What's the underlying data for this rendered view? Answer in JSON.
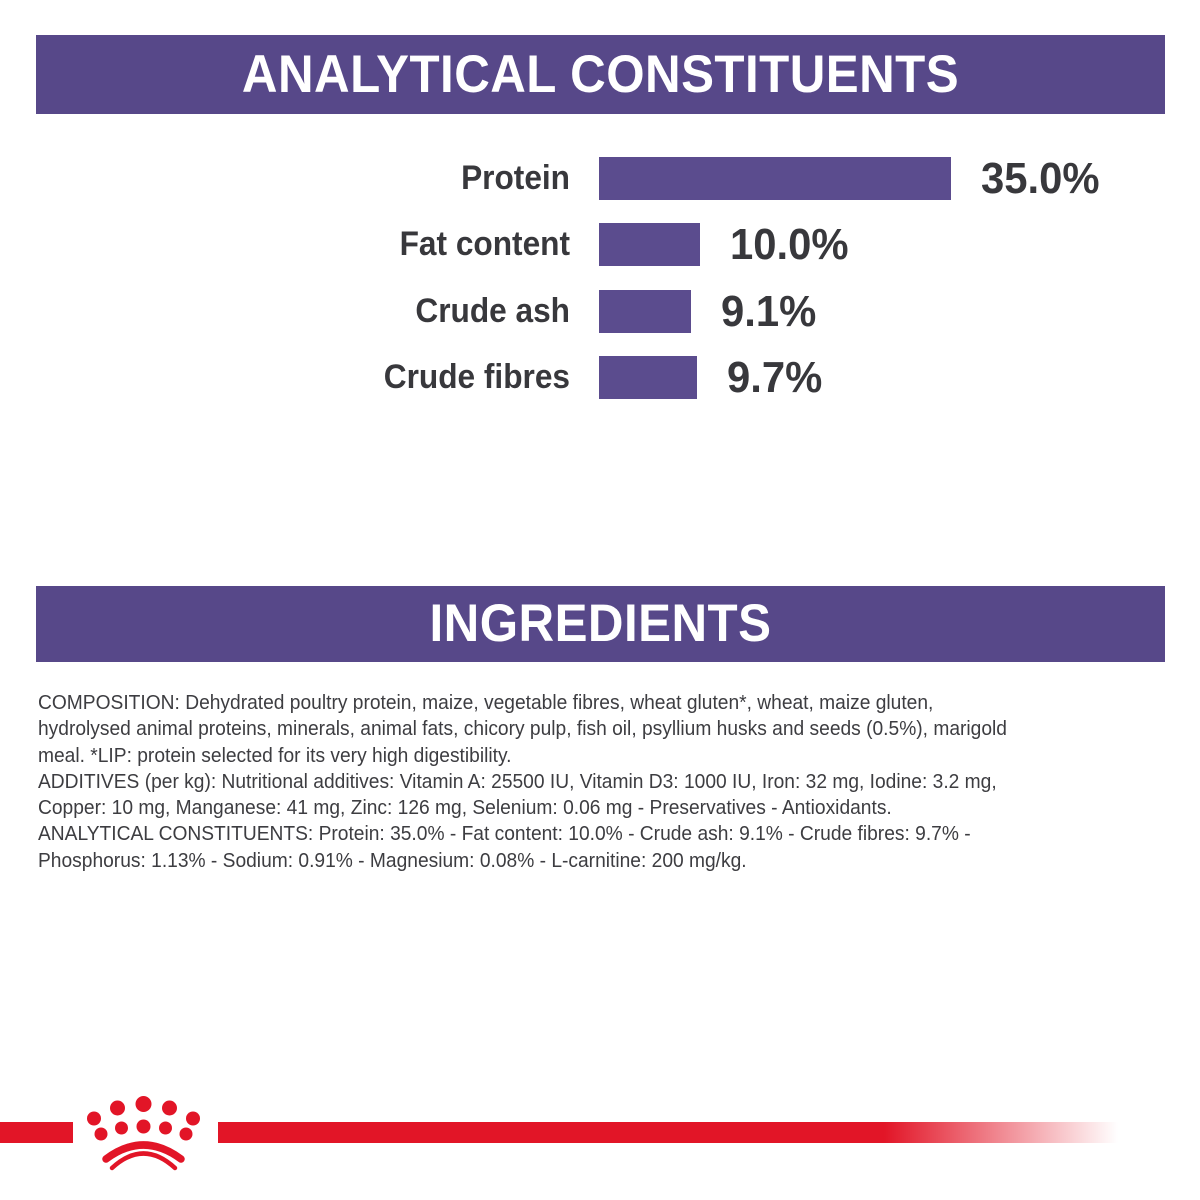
{
  "colors": {
    "banner_purple": "#574889",
    "bar_purple": "#5b4c8e",
    "brand_red": "#e21527",
    "chart_text": "#38383c",
    "body_text": "#3d3d41",
    "background": "#ffffff",
    "banner_text": "#ffffff"
  },
  "analytical_banner": {
    "title": "ANALYTICAL CONSTITUENTS"
  },
  "chart_data": {
    "type": "bar",
    "orientation": "horizontal",
    "title": "ANALYTICAL CONSTITUENTS",
    "categories": [
      "Protein",
      "Fat content",
      "Crude ash",
      "Crude fibres"
    ],
    "values": [
      35.0,
      10.0,
      9.1,
      9.7
    ],
    "value_labels": [
      "35.0%",
      "10.0%",
      "9.1%",
      "9.7%"
    ],
    "unit": "%",
    "xlim": [
      0,
      35
    ],
    "grid": "off",
    "legend": "none",
    "bar_color": "#5b4c8e"
  },
  "ingredients_banner": {
    "title": "INGREDIENTS"
  },
  "ingredients_text": {
    "lines": [
      "COMPOSITION: Dehydrated poultry protein, maize, vegetable fibres, wheat gluten*, wheat, maize gluten,",
      "hydrolysed animal proteins, minerals, animal fats, chicory pulp, fish oil, psyllium husks and seeds (0.5%), marigold",
      "meal. *LIP: protein selected for its very high digestibility.",
      "ADDITIVES (per kg): Nutritional additives: Vitamin A: 25500 IU, Vitamin D3: 1000 IU, Iron: 32 mg, Iodine: 3.2 mg,",
      "Copper: 10 mg, Manganese: 41 mg, Zinc: 126 mg, Selenium: 0.06 mg - Preservatives - Antioxidants.",
      "ANALYTICAL CONSTITUENTS: Protein: 35.0% - Fat content: 10.0% - Crude ash: 9.1% - Crude fibres: 9.7% -",
      "Phosphorus: 1.13% - Sodium: 0.91% - Magnesium: 0.08% - L-carnitine: 200 mg/kg."
    ]
  },
  "footer": {
    "logo": "royal-canin-crown-icon"
  }
}
